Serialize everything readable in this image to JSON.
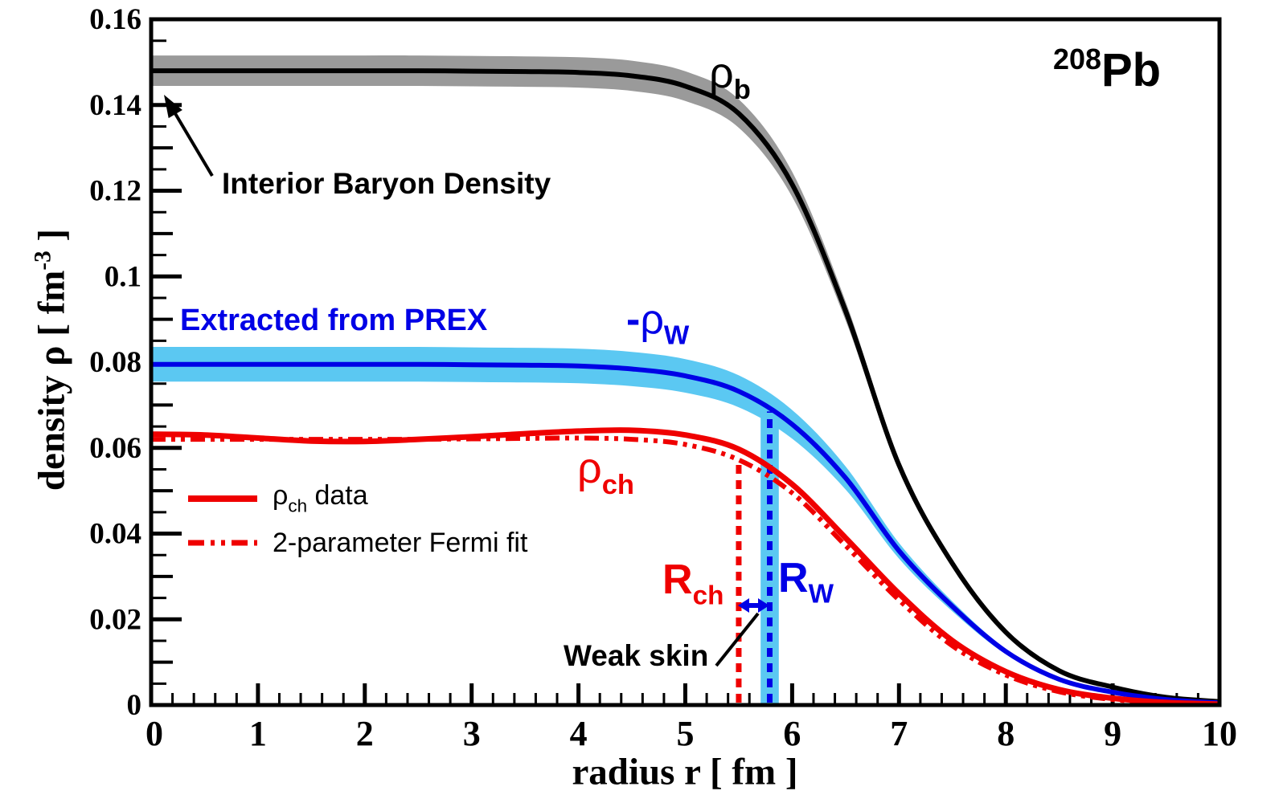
{
  "figure": {
    "background": "#FFFFFF"
  },
  "colors": {
    "black": "#000000",
    "gray_band": "#9A9A9A",
    "blue": "#0000E6",
    "light_blue": "#5BC8F2",
    "red": "#EF0000"
  },
  "chart_data": {
    "type": "line",
    "title": "208Pb",
    "xlabel": "radius r [ fm ]",
    "ylabel": "density rho [ fm^-3 ]",
    "xlim": [
      0,
      10
    ],
    "ylim": [
      0,
      0.16
    ],
    "grid": false,
    "x": [
      0,
      0.5,
      1,
      1.5,
      2,
      2.5,
      3,
      3.5,
      4,
      4.5,
      5,
      5.5,
      6,
      6.5,
      7,
      7.5,
      8,
      8.5,
      9,
      9.5,
      10
    ],
    "series": [
      {
        "name": "interior-baryon-density-rho-b",
        "label": "rho_b",
        "color_key": "black",
        "style": "solid",
        "width": 6,
        "band": {
          "color_key": "gray_band",
          "upper_ratio": 1.024,
          "lower_ratio": 0.976
        },
        "values": [
          0.148,
          0.148,
          0.148,
          0.148,
          0.148,
          0.148,
          0.1479,
          0.1478,
          0.1476,
          0.1468,
          0.1444,
          0.138,
          0.1215,
          0.092,
          0.056,
          0.033,
          0.017,
          0.008,
          0.0042,
          0.0018,
          0.0008
        ]
      },
      {
        "name": "weak-density-minus-rho-w",
        "label": "-rho_W",
        "color_key": "blue",
        "style": "solid",
        "width": 6,
        "band": {
          "color_key": "light_blue",
          "upper_ratio": 1.051,
          "lower_ratio": 0.949
        },
        "values": [
          0.0795,
          0.0795,
          0.0795,
          0.0795,
          0.0795,
          0.0795,
          0.0794,
          0.0793,
          0.0791,
          0.0784,
          0.0768,
          0.0732,
          0.0655,
          0.053,
          0.036,
          0.023,
          0.0125,
          0.006,
          0.003,
          0.0013,
          0.0005
        ]
      },
      {
        "name": "charge-density-fermi-fit",
        "label": "2-parameter Fermi fit",
        "color_key": "red",
        "style": "dashdot",
        "width": 6,
        "values": [
          0.062,
          0.062,
          0.062,
          0.062,
          0.062,
          0.062,
          0.0621,
          0.0622,
          0.0623,
          0.062,
          0.0608,
          0.0572,
          0.0495,
          0.0372,
          0.0245,
          0.0138,
          0.007,
          0.0031,
          0.0013,
          0.0005,
          0.0002
        ]
      },
      {
        "name": "charge-density-data",
        "label": "rho_ch data",
        "color_key": "red",
        "style": "solid",
        "width": 7,
        "values": [
          0.0632,
          0.063,
          0.0623,
          0.0616,
          0.0615,
          0.062,
          0.0626,
          0.0633,
          0.0639,
          0.0641,
          0.063,
          0.0597,
          0.0515,
          0.039,
          0.026,
          0.015,
          0.0078,
          0.0036,
          0.0016,
          0.0006,
          0.0002
        ]
      }
    ],
    "markers": {
      "r_ch": {
        "label": "R_ch",
        "x": 5.5,
        "top_density": 0.0572,
        "color_key": "red",
        "style": "dotted"
      },
      "r_w": {
        "label": "R_W",
        "x": 5.79,
        "top_density": 0.0685,
        "color_key": "blue",
        "style": "dotted",
        "band_color_key": "light_blue",
        "band_halfwidth_fm": 0.085
      }
    },
    "legend_position": "left-middle"
  },
  "axes": {
    "x": {
      "title": "radius r [ fm ]",
      "min": 0,
      "max": 10,
      "major_step": 1,
      "minor_step": 0.2,
      "tick_labels": [
        "0",
        "1",
        "2",
        "3",
        "4",
        "5",
        "6",
        "7",
        "8",
        "9",
        "10"
      ]
    },
    "y": {
      "title_pre": "density  ρ [ fm",
      "title_sup": "-3",
      "title_post": " ]",
      "min": 0,
      "max": 0.16,
      "major_step": 0.02,
      "medium_step": 0.01,
      "minor_step": 0.005,
      "tick_labels": [
        "0",
        "0.02",
        "0.04",
        "0.06",
        "0.08",
        "0.1",
        "0.12",
        "0.14",
        "0.16"
      ]
    }
  },
  "annotations": {
    "interior": "Interior Baryon Density",
    "prex": "Extracted from PREX",
    "weak_skin": "Weak skin",
    "rho_b": {
      "main": "ρ",
      "sub": "b"
    },
    "minus_rho_w": {
      "minus": "-",
      "main": "ρ",
      "sub": "W"
    },
    "rho_ch": {
      "main": "ρ",
      "sub": "ch"
    },
    "r_ch": {
      "main": "R",
      "sub": "ch"
    },
    "r_w": {
      "main": "R",
      "sub": "W"
    },
    "pb": {
      "sup": "208",
      "main": "Pb"
    }
  },
  "legend": {
    "items": [
      {
        "swatch": "solid",
        "rho": "ρ",
        "sub": "ch",
        "rest": " data"
      },
      {
        "swatch": "dashdot",
        "label": "2-parameter Fermi fit"
      }
    ]
  }
}
